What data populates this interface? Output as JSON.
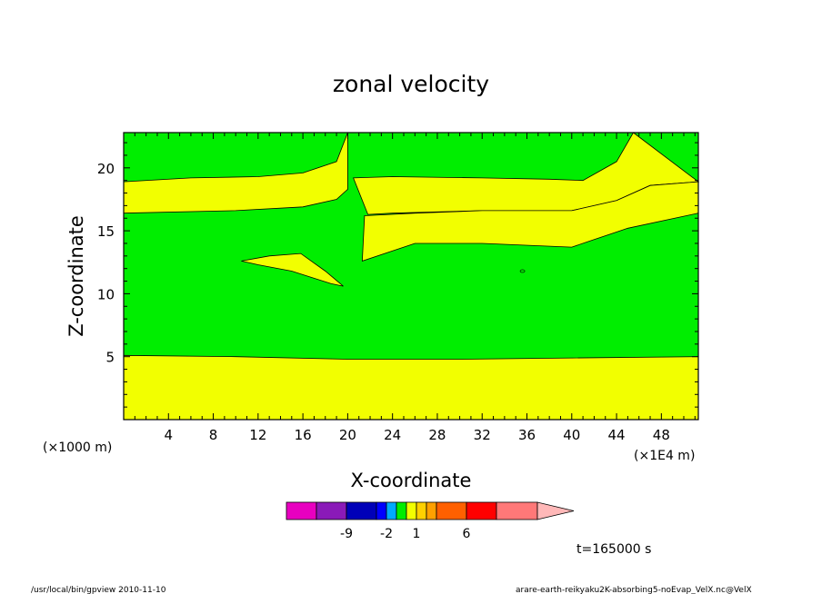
{
  "chart_data": {
    "type": "heatmap",
    "title": "zonal velocity",
    "xlabel": "X-coordinate",
    "ylabel": "Z-coordinate",
    "x_unit_left": "(×1000 m)",
    "x_unit_right": "(×1E4 m)",
    "xlim": [
      0,
      51.3
    ],
    "ylim": [
      0,
      22.8
    ],
    "x_ticks": [
      "4",
      "8",
      "12",
      "16",
      "20",
      "24",
      "28",
      "32",
      "36",
      "40",
      "44",
      "48"
    ],
    "y_ticks": [
      "5",
      "10",
      "15",
      "20"
    ],
    "regions": [
      {
        "name": "lower band",
        "level": "0 to 1",
        "color": "#f2ff00",
        "top": [
          [
            0,
            5.1
          ],
          [
            10,
            5.0
          ],
          [
            20,
            4.8
          ],
          [
            30,
            4.8
          ],
          [
            40,
            4.9
          ],
          [
            51.3,
            5.0
          ]
        ]
      },
      {
        "name": "middle band",
        "level": "0 to 1",
        "color": "#f2ff00",
        "top": [
          [
            0,
            18.9
          ],
          [
            6,
            19.2
          ],
          [
            12,
            19.3
          ],
          [
            16,
            19.6
          ],
          [
            19,
            20.5
          ],
          [
            20,
            22.8
          ]
        ],
        "bottom": [
          [
            0,
            16.4
          ],
          [
            10,
            16.6
          ],
          [
            16,
            16.9
          ],
          [
            19,
            17.5
          ],
          [
            20,
            18.3
          ]
        ]
      },
      {
        "name": "upper right band",
        "level": "0 to 1",
        "color": "#f2ff00",
        "top": [
          [
            20.5,
            19.2
          ],
          [
            24,
            19.3
          ],
          [
            32,
            19.2
          ],
          [
            38,
            19.1
          ],
          [
            41,
            19.0
          ],
          [
            44,
            20.5
          ],
          [
            45.5,
            22.8
          ]
        ],
        "bottom": [
          [
            21.8,
            16.3
          ],
          [
            24,
            16.4
          ],
          [
            32,
            16.6
          ],
          [
            40,
            16.6
          ],
          [
            44,
            17.4
          ],
          [
            47,
            18.6
          ],
          [
            51.3,
            18.9
          ]
        ]
      },
      {
        "name": "right middle band",
        "level": "0 to 1",
        "color": "#f2ff00",
        "top": [
          [
            21.5,
            16.2
          ],
          [
            26,
            16.4
          ],
          [
            32,
            16.6
          ],
          [
            40,
            16.6
          ],
          [
            44,
            17.4
          ],
          [
            47,
            18.6
          ],
          [
            51.3,
            18.9
          ]
        ],
        "bottom": [
          [
            21.3,
            12.6
          ],
          [
            26,
            14.0
          ],
          [
            32,
            14.0
          ],
          [
            40,
            13.7
          ],
          [
            42,
            14.3
          ],
          [
            45,
            15.2
          ],
          [
            51.3,
            16.4
          ]
        ]
      },
      {
        "name": "lens",
        "level": "0 to 1",
        "color": "#f2ff00",
        "outline": [
          [
            10.5,
            12.6
          ],
          [
            13,
            13.0
          ],
          [
            15.8,
            13.2
          ],
          [
            18,
            11.8
          ],
          [
            19.6,
            10.6
          ],
          [
            18.5,
            10.8
          ],
          [
            15,
            11.8
          ],
          [
            12,
            12.3
          ]
        ]
      },
      {
        "name": "background",
        "level": "-1 to 0",
        "color": "#00ee00"
      }
    ],
    "colorbar": {
      "colors": [
        "#e800c0",
        "#8a1ab8",
        "#0000b8",
        "#0000ff",
        "#00aaff",
        "#00ee00",
        "#f2ff00",
        "#ffd000",
        "#ffa000",
        "#ff6000",
        "#ff0000",
        "#ff7878"
      ],
      "extend_color": "#ffb8b8",
      "labels": [
        "-9",
        "-2",
        "1",
        "6"
      ]
    },
    "annotation": "t=165000 s"
  },
  "footer": {
    "left": "/usr/local/bin/gpview  2010-11-10",
    "right": "arare-earth-reikyaku2K-absorbing5-noEvap_VelX.nc@VelX"
  }
}
